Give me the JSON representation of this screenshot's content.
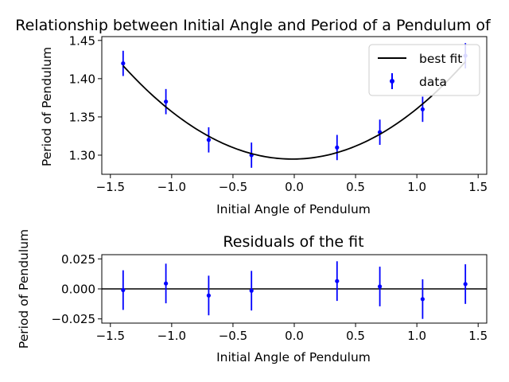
{
  "chart_data": [
    {
      "type": "scatter",
      "title": "Relationship between Initial Angle and Period of a Pendulum of",
      "xlabel": "Initial Angle of Pendulum",
      "ylabel": "Period of Pendulum",
      "xlim": [
        -1.57,
        1.57
      ],
      "ylim": [
        1.275,
        1.455
      ],
      "xticks": [
        -1.5,
        -1.0,
        -0.5,
        0.0,
        0.5,
        1.0,
        1.5
      ],
      "xtick_labels": [
        "−1.5",
        "−1.0",
        "−0.5",
        "0.0",
        "0.5",
        "1.0",
        "1.5"
      ],
      "yticks": [
        1.3,
        1.35,
        1.4,
        1.45
      ],
      "ytick_labels": [
        "1.30",
        "1.35",
        "1.40",
        "1.45"
      ],
      "legend": {
        "position": "top-right",
        "entries": [
          "best fit",
          "data"
        ]
      },
      "grid": false,
      "series": [
        {
          "name": "data",
          "style": "errorbar",
          "color": "#0000ff",
          "x": [
            -1.396,
            -1.047,
            -0.698,
            -0.349,
            0.349,
            0.698,
            1.047,
            1.396
          ],
          "y": [
            1.42,
            1.37,
            1.32,
            1.3,
            1.31,
            1.33,
            1.36,
            1.43
          ],
          "yerr": 0.0165
        },
        {
          "name": "best fit",
          "style": "line",
          "color": "#000000",
          "function": "a*x^2 + b*x + c",
          "coefficients": {
            "a": 0.06395,
            "b": 0.00188,
            "c": 1.2949
          },
          "x_range": [
            -1.396,
            1.396
          ]
        }
      ]
    },
    {
      "type": "scatter",
      "title": "Residuals of the fit",
      "xlabel": "Initial Angle of Pendulum",
      "ylabel": "Period of Pendulum",
      "xlim": [
        -1.57,
        1.57
      ],
      "ylim": [
        -0.0285,
        0.0285
      ],
      "xticks": [
        -1.5,
        -1.0,
        -0.5,
        0.0,
        0.5,
        1.0,
        1.5
      ],
      "xtick_labels": [
        "−1.5",
        "−1.0",
        "−0.5",
        "0.0",
        "0.5",
        "1.0",
        "1.5"
      ],
      "yticks": [
        -0.025,
        0.0,
        0.025
      ],
      "ytick_labels": [
        "−0.025",
        "0.000",
        "0.025"
      ],
      "reference_line_y": 0.0,
      "grid": false,
      "series": [
        {
          "style": "errorbar",
          "color": "#0000ff",
          "x": [
            -1.396,
            -1.047,
            -0.698,
            -0.349,
            0.349,
            0.698,
            1.047,
            1.396
          ],
          "y": [
            -0.001,
            0.0045,
            -0.0055,
            -0.0015,
            0.0065,
            0.002,
            -0.0085,
            0.004
          ],
          "yerr": 0.0165
        }
      ]
    }
  ]
}
